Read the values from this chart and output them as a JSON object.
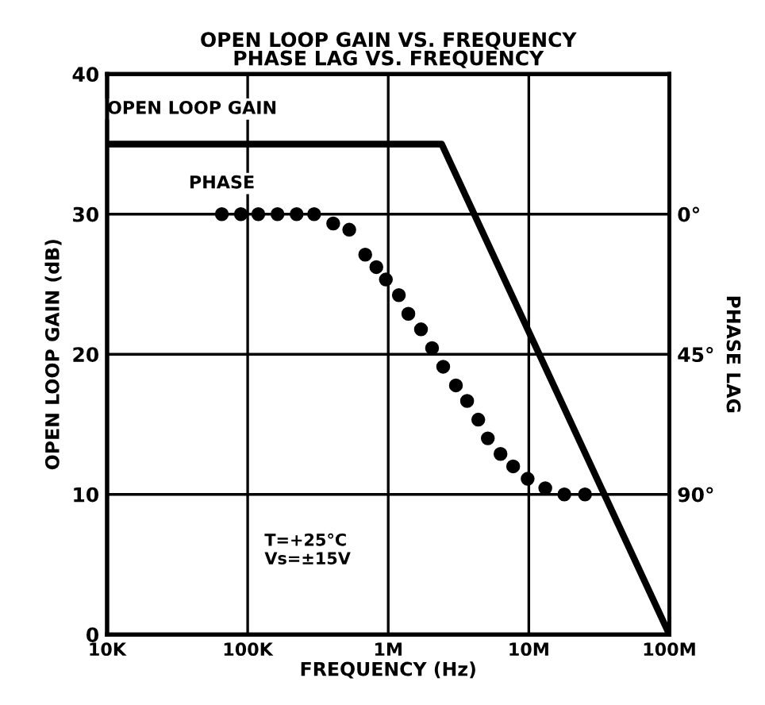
{
  "chart_data": {
    "type": "line",
    "title": "OPEN LOOP GAIN VS. FREQUENCY\nPHASE LAG VS. FREQUENCY",
    "xlabel": "FREQUENCY (Hz)",
    "ylabel": "OPEN LOOP GAIN (dB)",
    "y2label": "PHASE LAG",
    "log": "x",
    "grid": true,
    "legend": false,
    "xlim": [
      10000,
      100000000
    ],
    "xticks": [
      {
        "value": 10000,
        "label": "10K"
      },
      {
        "value": 100000,
        "label": "100K"
      },
      {
        "value": 1000000,
        "label": "1M"
      },
      {
        "value": 10000000,
        "label": "10M"
      },
      {
        "value": 100000000,
        "label": "100M"
      }
    ],
    "ylim": [
      0,
      40
    ],
    "yticks": [
      0,
      10,
      20,
      30,
      40
    ],
    "y2lim": [
      135,
      -45
    ],
    "y2ticks": [
      {
        "value": 0,
        "label": "0°"
      },
      {
        "value": 45,
        "label": "45°"
      },
      {
        "value": 90,
        "label": "90°"
      }
    ],
    "series": [
      {
        "name": "OPEN LOOP GAIN",
        "color": "#000000",
        "marker": "none",
        "line_style": "solid",
        "x": [
          10000,
          2400000,
          100000000
        ],
        "values": [
          35,
          35,
          0
        ]
      },
      {
        "name": "PHASE",
        "type": "scatter",
        "axis": "y2",
        "color": "#000000",
        "marker": "circle",
        "x": [
          65500,
          89500,
          119000,
          163000,
          223000,
          297000,
          406000,
          528000,
          686000,
          823000,
          962000,
          1190000,
          1390000,
          1710000,
          2050000,
          2460000,
          3030000,
          3640000,
          4370000,
          5110000,
          6290000,
          7740000,
          9810000,
          13100000,
          17900000,
          25100000
        ],
        "values": [
          0,
          0,
          0,
          0,
          0,
          0,
          3,
          5,
          13,
          17,
          21,
          26,
          32,
          37,
          43,
          49,
          55,
          60,
          66,
          72,
          77,
          81,
          85,
          88,
          90,
          90
        ]
      }
    ],
    "annotations": [
      "T=+25°C\nVs=±15V"
    ]
  }
}
